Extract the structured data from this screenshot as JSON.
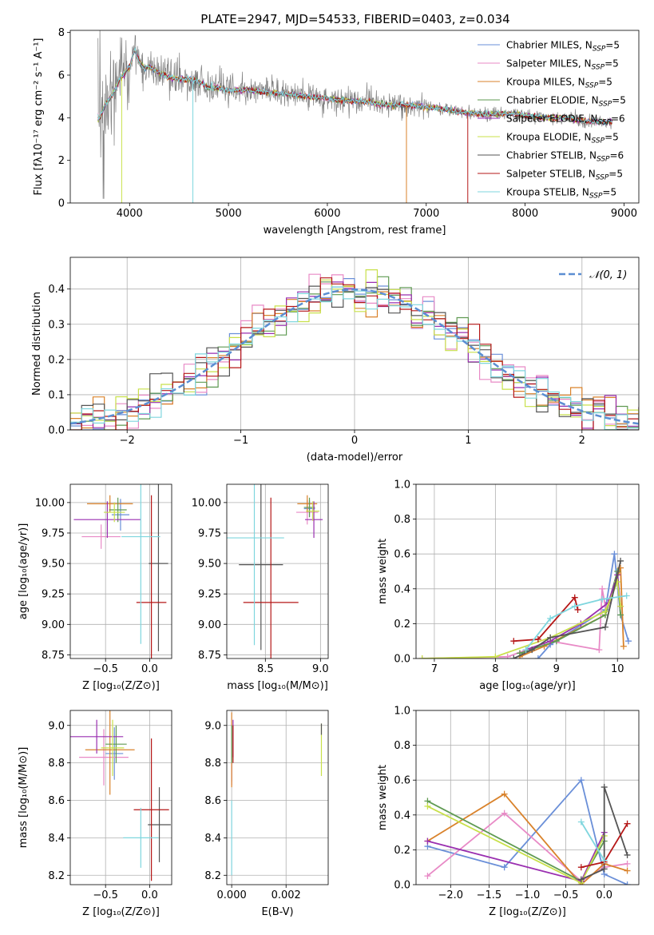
{
  "figure_title": "PLATE=2947, MJD=54533, FIBERID=0403, z=0.034",
  "colors": {
    "chabrier_miles": "#6a8fd8",
    "salpeter_miles": "#e88ac6",
    "kroupa_miles": "#d9822b",
    "chabrier_elodie": "#5f9a52",
    "salpeter_elodie": "#9a2fb0",
    "kroupa_elodie": "#c8e04a",
    "chabrier_stelib": "#555555",
    "salpeter_stelib": "#b51717",
    "kroupa_stelib": "#7fd6de",
    "data": "#808080",
    "normal": "#5b8ed2"
  },
  "chart_data": [
    {
      "id": "spectrum",
      "type": "line",
      "title": "PLATE=2947, MJD=54533, FIBERID=0403, z=0.034",
      "xlabel": "wavelength [Angstrom, rest frame]",
      "ylabel": "Flux [fλ10⁻¹⁷ erg cm⁻² s⁻¹ A⁻¹]",
      "xlim": [
        3400,
        9150
      ],
      "ylim": [
        0,
        8.1
      ],
      "xticks": [
        "4000",
        "5000",
        "6000",
        "7000",
        "8000",
        "9000"
      ],
      "yticks": [
        "0",
        "2",
        "4",
        "6",
        "8"
      ],
      "grid": false,
      "legend_position": "top-right",
      "legend": [
        {
          "label": "Chabrier MILES, N",
          "sub": "SSP",
          "tail": "=5",
          "color_key": "chabrier_miles"
        },
        {
          "label": "Salpeter MILES, N",
          "sub": "SSP",
          "tail": "=5",
          "color_key": "salpeter_miles"
        },
        {
          "label": "Kroupa MILES, N",
          "sub": "SSP",
          "tail": "=5",
          "color_key": "kroupa_miles"
        },
        {
          "label": "Chabrier ELODIE, N",
          "sub": "SSP",
          "tail": "=5",
          "color_key": "chabrier_elodie"
        },
        {
          "label": "Salpeter ELODIE, N",
          "sub": "SSP",
          "tail": "=6",
          "color_key": "salpeter_elodie"
        },
        {
          "label": "Kroupa ELODIE, N",
          "sub": "SSP",
          "tail": "=5",
          "color_key": "kroupa_elodie"
        },
        {
          "label": "Chabrier STELIB, N",
          "sub": "SSP",
          "tail": "=6",
          "color_key": "chabrier_stelib"
        },
        {
          "label": "Salpeter STELIB, N",
          "sub": "SSP",
          "tail": "=5",
          "color_key": "salpeter_stelib"
        },
        {
          "label": "Kroupa STELIB, N",
          "sub": "SSP",
          "tail": "=5",
          "color_key": "kroupa_stelib"
        }
      ],
      "model_curve": {
        "x": [
          3700,
          3750,
          3800,
          3850,
          3900,
          3950,
          4000,
          4050,
          4100,
          4150,
          4200,
          4300,
          4400,
          4500,
          4600,
          4700,
          4800,
          4900,
          5000,
          5200,
          5400,
          5600,
          5800,
          6000,
          6200,
          6400,
          6600,
          6800,
          7000,
          7200,
          7400,
          7600,
          7800,
          8000,
          8200,
          8400,
          8600,
          8800
        ],
        "y": [
          4.0,
          4.6,
          4.9,
          5.3,
          5.8,
          6.1,
          6.4,
          7.2,
          6.6,
          6.3,
          6.4,
          6.1,
          5.9,
          5.8,
          5.8,
          5.7,
          5.4,
          5.4,
          5.3,
          5.3,
          5.2,
          5.1,
          5.0,
          4.9,
          4.8,
          4.75,
          4.6,
          4.6,
          4.5,
          4.4,
          4.25,
          4.15,
          4.2,
          4.1,
          4.0,
          4.0,
          3.85,
          3.8
        ]
      },
      "drops": [
        {
          "x": 3920,
          "to": 0,
          "color_key": "kroupa_elodie"
        },
        {
          "x": 4640,
          "to": 0,
          "color_key": "kroupa_stelib"
        },
        {
          "x": 6800,
          "to": 0,
          "color_key": "kroupa_miles"
        },
        {
          "x": 7420,
          "to": 0,
          "color_key": "salpeter_stelib"
        }
      ]
    },
    {
      "id": "residuals",
      "type": "line",
      "xlabel": "(data-model)/error",
      "ylabel": "Normed distribution",
      "xlim": [
        -2.5,
        2.5
      ],
      "ylim": [
        0,
        0.49
      ],
      "xticks": [
        "−2",
        "−1",
        "0",
        "1",
        "2"
      ],
      "yticks": [
        "0.0",
        "0.1",
        "0.2",
        "0.3",
        "0.4"
      ],
      "grid": true,
      "legend_position": "top-right",
      "legend": [
        {
          "label": "𝒩(0, 1)",
          "color_key": "normal",
          "style": "dashed"
        }
      ],
      "bin_width": 0.1
    },
    {
      "id": "age_vs_Z",
      "type": "scatter",
      "xlabel": "Z [log₁₀(Z/Z⊙)]",
      "ylabel": "age  [log₁₀(age/yr)]",
      "xlim": [
        -0.9,
        0.25
      ],
      "ylim": [
        8.72,
        10.15
      ],
      "xticks": [
        "−0.5",
        "0.0"
      ],
      "yticks": [
        "8.75",
        "9.00",
        "9.25",
        "9.50",
        "9.75",
        "10.00"
      ],
      "grid": true,
      "points": [
        {
          "key": "chabrier_miles",
          "x": -0.33,
          "xerr": 0.1,
          "y": 9.9,
          "yerr": 0.13
        },
        {
          "key": "salpeter_miles",
          "x": -0.55,
          "xerr": 0.22,
          "y": 9.72,
          "yerr": 0.1
        },
        {
          "key": "kroupa_miles",
          "x": -0.45,
          "xerr": 0.26,
          "y": 9.99,
          "yerr": 0.07
        },
        {
          "key": "chabrier_elodie",
          "x": -0.36,
          "xerr": 0.1,
          "y": 9.94,
          "yerr": 0.1
        },
        {
          "key": "salpeter_elodie",
          "x": -0.48,
          "xerr": 0.38,
          "y": 9.86,
          "yerr": 0.15
        },
        {
          "key": "kroupa_elodie",
          "x": -0.4,
          "xerr": 0.12,
          "y": 9.92,
          "yerr": 0.08
        },
        {
          "key": "chabrier_stelib",
          "x": 0.1,
          "xerr": 0.11,
          "y": 9.5,
          "yerr": 0.72
        },
        {
          "key": "salpeter_stelib",
          "x": 0.02,
          "xerr": 0.17,
          "y": 9.18,
          "yerr": 0.88
        },
        {
          "key": "kroupa_stelib",
          "x": -0.1,
          "xerr": 0.22,
          "y": 9.72,
          "yerr": 0.88
        }
      ]
    },
    {
      "id": "age_vs_mass",
      "type": "scatter",
      "xlabel": "mass [log₁₀(M/M⊙)]",
      "ylabel": "",
      "xlim": [
        8.15,
        9.07
      ],
      "ylim": [
        8.72,
        10.15
      ],
      "xticks": [
        "8.5",
        "9.0"
      ],
      "yticks": [
        "8.75",
        "9.00",
        "9.25",
        "9.50",
        "9.75",
        "10.00"
      ],
      "grid": true,
      "points": [
        {
          "key": "chabrier_miles",
          "x": 8.9,
          "xerr": 0.05,
          "y": 9.95,
          "yerr": 0.07
        },
        {
          "key": "salpeter_miles",
          "x": 8.88,
          "xerr": 0.1,
          "y": 9.92,
          "yerr": 0.1
        },
        {
          "key": "kroupa_miles",
          "x": 8.88,
          "xerr": 0.09,
          "y": 9.99,
          "yerr": 0.07
        },
        {
          "key": "chabrier_elodie",
          "x": 8.9,
          "xerr": 0.05,
          "y": 9.96,
          "yerr": 0.08
        },
        {
          "key": "salpeter_elodie",
          "x": 8.94,
          "xerr": 0.08,
          "y": 9.86,
          "yerr": 0.15
        },
        {
          "key": "kroupa_elodie",
          "x": 8.93,
          "xerr": 0.06,
          "y": 9.93,
          "yerr": 0.08
        },
        {
          "key": "chabrier_stelib",
          "x": 8.46,
          "xerr": 0.2,
          "y": 9.49,
          "yerr": 0.7
        },
        {
          "key": "salpeter_stelib",
          "x": 8.55,
          "xerr": 0.25,
          "y": 9.18,
          "yerr": 0.86
        },
        {
          "key": "kroupa_stelib",
          "x": 8.4,
          "xerr": 0.27,
          "y": 9.71,
          "yerr": 0.88
        }
      ]
    },
    {
      "id": "weight_vs_age",
      "type": "line",
      "xlabel": "age  [log₁₀(age/yr)]",
      "ylabel": "mass weight",
      "xlim": [
        6.7,
        10.35
      ],
      "ylim": [
        0,
        1.0
      ],
      "xticks": [
        "7",
        "8",
        "9",
        "10"
      ],
      "yticks": [
        "0.0",
        "0.2",
        "0.4",
        "0.6",
        "0.8",
        "1.0"
      ],
      "grid": true,
      "series": [
        {
          "key": "chabrier_miles",
          "x": [
            8.7,
            8.9,
            9.8,
            9.95,
            10.05,
            10.18
          ],
          "y": [
            0.0,
            0.08,
            0.28,
            0.6,
            0.25,
            0.1
          ]
        },
        {
          "key": "salpeter_miles",
          "x": [
            6.8,
            8.2,
            8.9,
            9.7,
            9.75,
            9.8
          ],
          "y": [
            0.0,
            0.01,
            0.1,
            0.05,
            0.4,
            0.3
          ]
        },
        {
          "key": "kroupa_miles",
          "x": [
            8.4,
            8.8,
            9.8,
            10.05,
            10.1
          ],
          "y": [
            0.01,
            0.07,
            0.25,
            0.52,
            0.07
          ]
        },
        {
          "key": "chabrier_elodie",
          "x": [
            8.4,
            9.0,
            9.8,
            10.0,
            10.05
          ],
          "y": [
            0.03,
            0.1,
            0.25,
            0.5,
            0.25
          ]
        },
        {
          "key": "salpeter_elodie",
          "x": [
            8.5,
            8.9,
            9.4,
            9.85,
            10.0,
            10.05
          ],
          "y": [
            0.05,
            0.1,
            0.2,
            0.32,
            0.48,
            0.3
          ]
        },
        {
          "key": "kroupa_elodie",
          "x": [
            6.8,
            8.0,
            8.9,
            9.8,
            10.0,
            10.05
          ],
          "y": [
            0.0,
            0.01,
            0.12,
            0.27,
            0.44,
            0.3
          ]
        },
        {
          "key": "chabrier_stelib",
          "x": [
            8.3,
            8.6,
            8.9,
            9.8,
            10.05
          ],
          "y": [
            0.0,
            0.05,
            0.12,
            0.18,
            0.56
          ]
        },
        {
          "key": "salpeter_stelib",
          "x": [
            8.3,
            8.7,
            9.3,
            9.35
          ],
          "y": [
            0.1,
            0.11,
            0.35,
            0.28
          ]
        },
        {
          "key": "kroupa_stelib",
          "x": [
            8.5,
            8.9,
            9.3,
            9.75,
            10.15
          ],
          "y": [
            0.05,
            0.23,
            0.3,
            0.34,
            0.36
          ]
        }
      ]
    },
    {
      "id": "mass_vs_Z",
      "type": "scatter",
      "xlabel": "Z [log₁₀(Z/Z⊙)]",
      "ylabel": "mass [log₁₀(M/M⊙)]",
      "xlim": [
        -0.9,
        0.25
      ],
      "ylim": [
        8.15,
        9.08
      ],
      "xticks": [
        "−0.5",
        "0.0"
      ],
      "yticks": [
        "8.2",
        "8.4",
        "8.6",
        "8.8",
        "9.0"
      ],
      "grid": true,
      "points": [
        {
          "key": "chabrier_miles",
          "x": -0.4,
          "xerr": 0.1,
          "y": 8.85,
          "yerr": 0.14
        },
        {
          "key": "salpeter_miles",
          "x": -0.52,
          "xerr": 0.28,
          "y": 8.83,
          "yerr": 0.15
        },
        {
          "key": "kroupa_miles",
          "x": -0.45,
          "xerr": 0.28,
          "y": 8.87,
          "yerr": 0.24
        },
        {
          "key": "chabrier_elodie",
          "x": -0.38,
          "xerr": 0.12,
          "y": 8.9,
          "yerr": 0.1
        },
        {
          "key": "salpeter_elodie",
          "x": -0.6,
          "xerr": 0.3,
          "y": 8.94,
          "yerr": 0.09
        },
        {
          "key": "kroupa_elodie",
          "x": -0.42,
          "xerr": 0.13,
          "y": 8.88,
          "yerr": 0.15
        },
        {
          "key": "chabrier_stelib",
          "x": 0.11,
          "xerr": 0.13,
          "y": 8.47,
          "yerr": 0.2
        },
        {
          "key": "salpeter_stelib",
          "x": 0.02,
          "xerr": 0.2,
          "y": 8.55,
          "yerr": 0.38
        },
        {
          "key": "kroupa_stelib",
          "x": -0.1,
          "xerr": 0.2,
          "y": 8.4,
          "yerr": 0.16
        }
      ]
    },
    {
      "id": "mass_vs_ebv",
      "type": "scatter",
      "xlabel": "E(B-V)",
      "ylabel": "",
      "xlim": [
        -0.00018,
        0.00355
      ],
      "ylim": [
        8.15,
        9.08
      ],
      "xticks": [
        "0.000",
        "0.002"
      ],
      "yticks": [
        "8.2",
        "8.4",
        "8.6",
        "8.8",
        "9.0"
      ],
      "grid": true,
      "points": [
        {
          "key": "chabrier_miles",
          "x": 0.0,
          "y": 8.85,
          "yerr": 0.15
        },
        {
          "key": "salpeter_miles",
          "x": 0.0,
          "y": 8.82,
          "yerr": 0.14
        },
        {
          "key": "kroupa_miles",
          "x": 0.0,
          "y": 8.87,
          "yerr": 0.2
        },
        {
          "key": "chabrier_elodie",
          "x": 0.0,
          "y": 8.9,
          "yerr": 0.1
        },
        {
          "key": "salpeter_elodie",
          "x": 5e-05,
          "y": 8.93,
          "yerr": 0.1
        },
        {
          "key": "kroupa_elodie",
          "x": 0.0033,
          "y": 8.87,
          "yerr": 0.14
        },
        {
          "key": "chabrier_stelib",
          "x": 0.0033,
          "y": 8.98,
          "yerr": 0.03
        },
        {
          "key": "salpeter_stelib",
          "x": 5e-05,
          "y": 8.9,
          "yerr": 0.1
        },
        {
          "key": "kroupa_stelib",
          "x": 0.0,
          "y": 8.4,
          "yerr": 0.2
        }
      ]
    },
    {
      "id": "weight_vs_Z",
      "type": "line",
      "xlabel": "Z [log₁₀(Z/Z⊙)]",
      "ylabel": "mass weight",
      "xlim": [
        -2.45,
        0.45
      ],
      "ylim": [
        0,
        1.0
      ],
      "xticks": [
        "−2.0",
        "−1.5",
        "−1.0",
        "−0.5",
        "0.0"
      ],
      "yticks": [
        "0.0",
        "0.2",
        "0.4",
        "0.6",
        "0.8",
        "1.0"
      ],
      "grid": true,
      "series": [
        {
          "key": "chabrier_miles",
          "x": [
            -2.3,
            -1.3,
            -0.3,
            0.0,
            0.3
          ],
          "y": [
            0.22,
            0.1,
            0.6,
            0.06,
            0.0
          ]
        },
        {
          "key": "salpeter_miles",
          "x": [
            -2.3,
            -1.3,
            -0.3,
            0.0,
            0.3
          ],
          "y": [
            0.05,
            0.41,
            0.02,
            0.1,
            0.12
          ]
        },
        {
          "key": "kroupa_miles",
          "x": [
            -2.3,
            -1.3,
            -0.3,
            0.0,
            0.3
          ],
          "y": [
            0.25,
            0.52,
            0.0,
            0.12,
            0.08
          ]
        },
        {
          "key": "chabrier_elodie",
          "x": [
            -2.3,
            -0.3,
            0.0
          ],
          "y": [
            0.48,
            0.02,
            0.25
          ]
        },
        {
          "key": "salpeter_elodie",
          "x": [
            -2.3,
            -0.3,
            0.0
          ],
          "y": [
            0.25,
            0.02,
            0.3
          ]
        },
        {
          "key": "kroupa_elodie",
          "x": [
            -2.3,
            -0.3,
            0.0
          ],
          "y": [
            0.45,
            0.01,
            0.28
          ]
        },
        {
          "key": "chabrier_stelib",
          "x": [
            -0.3,
            0.0,
            0.0,
            0.3
          ],
          "y": [
            0.03,
            0.09,
            0.56,
            0.17
          ]
        },
        {
          "key": "salpeter_stelib",
          "x": [
            -0.3,
            0.0,
            0.3
          ],
          "y": [
            0.1,
            0.13,
            0.35
          ]
        },
        {
          "key": "kroupa_stelib",
          "x": [
            -0.3,
            0.0
          ],
          "y": [
            0.36,
            0.14
          ]
        }
      ]
    }
  ]
}
